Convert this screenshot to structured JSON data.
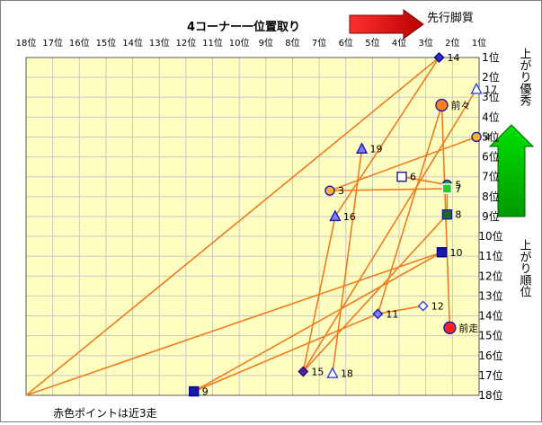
{
  "chart_data": {
    "type": "scatter",
    "title": "4コーナー一位置取り",
    "annotations": {
      "top_arrow_label": "先行脚質",
      "right_arrow_label": "上がり優秀",
      "y_axis_title": "上がり順位",
      "footnote": "赤色ポイントは近3走"
    },
    "x_axis": {
      "range": [
        18,
        1
      ],
      "ticks": [
        "18位",
        "17位",
        "16位",
        "15位",
        "14位",
        "13位",
        "12位",
        "11位",
        "10位",
        "9位",
        "8位",
        "7位",
        "6位",
        "5位",
        "4位",
        "3位",
        "2位",
        "1位"
      ]
    },
    "y_axis": {
      "range": [
        1,
        18
      ],
      "ticks": [
        "1位",
        "2位",
        "3位",
        "4位",
        "5位",
        "6位",
        "7位",
        "8位",
        "9位",
        "10位",
        "11位",
        "12位",
        "13位",
        "14位",
        "15位",
        "16位",
        "17位",
        "18位"
      ]
    },
    "grid": true,
    "colors": {
      "line": "#f07a20",
      "plot_bg": "#ffffc0",
      "grid": "#c8c8c8",
      "red_point": "#ff2020",
      "orange_point": "#ff7f20"
    },
    "points": [
      {
        "label": "14",
        "x": 2.5,
        "y": 1.0,
        "marker": "diamond",
        "fill": "#3030cc",
        "stroke": "#00008b"
      },
      {
        "label": "17",
        "x": 1.1,
        "y": 2.6,
        "marker": "triangle",
        "fill": "#ffffff",
        "stroke": "#3344dd"
      },
      {
        "label": "前々",
        "x": 2.4,
        "y": 3.4,
        "marker": "circle",
        "fill": "#ff7f20",
        "stroke": "#1a1aaa"
      },
      {
        "label": "4",
        "x": 1.1,
        "y": 5.0,
        "marker": "circle",
        "fill": "#ffb030",
        "stroke": "#1a1aaa"
      },
      {
        "label": "19",
        "x": 5.4,
        "y": 5.6,
        "marker": "triangle",
        "fill": "#8080ff",
        "stroke": "#1a1aaa"
      },
      {
        "label": "6",
        "x": 3.9,
        "y": 7.0,
        "marker": "square",
        "fill": "#ffffff",
        "stroke": "#1a1aaa"
      },
      {
        "label": "5",
        "x": 2.2,
        "y": 7.4,
        "marker": "circle",
        "fill": "#2e8b57",
        "stroke": "#1a1aaa"
      },
      {
        "label": "7",
        "x": 2.2,
        "y": 7.6,
        "marker": "square",
        "fill": "#22cc22",
        "stroke": "#ffffff"
      },
      {
        "label": "3",
        "x": 6.6,
        "y": 7.7,
        "marker": "circle",
        "fill": "#ffb030",
        "stroke": "#1a1aaa"
      },
      {
        "label": "16",
        "x": 6.4,
        "y": 9.0,
        "marker": "triangle",
        "fill": "#8080ff",
        "stroke": "#1a1aaa"
      },
      {
        "label": "8",
        "x": 2.2,
        "y": 8.9,
        "marker": "square",
        "fill": "#1e6b1e",
        "stroke": "#1a1aaa"
      },
      {
        "label": "10",
        "x": 2.4,
        "y": 10.8,
        "marker": "square",
        "fill": "#1a1aaa",
        "stroke": "#00008b"
      },
      {
        "label": "12",
        "x": 3.1,
        "y": 13.5,
        "marker": "diamond",
        "fill": "#ffffff",
        "stroke": "#3344dd"
      },
      {
        "label": "11",
        "x": 4.8,
        "y": 13.9,
        "marker": "diamond",
        "fill": "#8080ff",
        "stroke": "#1a1aaa"
      },
      {
        "label": "前走",
        "x": 2.1,
        "y": 14.6,
        "marker": "circle",
        "fill": "#ff2020",
        "stroke": "#1a1aaa"
      },
      {
        "label": "15",
        "x": 7.6,
        "y": 16.8,
        "marker": "diamond",
        "fill": "#5a1aaa",
        "stroke": "#2a0a6a"
      },
      {
        "label": "18",
        "x": 6.5,
        "y": 16.9,
        "marker": "triangle",
        "fill": "#ffffff",
        "stroke": "#3344dd"
      },
      {
        "label": "9",
        "x": 11.7,
        "y": 17.8,
        "marker": "square",
        "fill": "#1a1aaa",
        "stroke": "#00008b"
      }
    ],
    "line_segments": [
      {
        "x1": 18.0,
        "y1": 18.0,
        "x2": 2.5,
        "y2": 1.0
      },
      {
        "x1": 18.0,
        "y1": 18.0,
        "x2": 2.4,
        "y2": 10.8
      },
      {
        "x1": 2.4,
        "y1": 3.4,
        "x2": 2.1,
        "y2": 14.6
      },
      {
        "x1": 2.5,
        "y1": 1.0,
        "x2": 6.4,
        "y2": 9.0
      },
      {
        "x1": 1.1,
        "y1": 2.6,
        "x2": 7.6,
        "y2": 16.8
      },
      {
        "x1": 2.4,
        "y1": 3.4,
        "x2": 4.8,
        "y2": 13.9
      },
      {
        "x1": 1.1,
        "y1": 5.0,
        "x2": 6.6,
        "y2": 7.7
      },
      {
        "x1": 5.4,
        "y1": 5.6,
        "x2": 6.5,
        "y2": 16.9
      },
      {
        "x1": 3.9,
        "y1": 7.0,
        "x2": 2.2,
        "y2": 7.4
      },
      {
        "x1": 6.6,
        "y1": 7.7,
        "x2": 2.2,
        "y2": 7.6
      },
      {
        "x1": 2.2,
        "y1": 7.4,
        "x2": 2.2,
        "y2": 8.9
      },
      {
        "x1": 2.2,
        "y1": 8.9,
        "x2": 7.6,
        "y2": 16.8
      },
      {
        "x1": 2.4,
        "y1": 10.8,
        "x2": 11.7,
        "y2": 17.8
      },
      {
        "x1": 3.1,
        "y1": 13.5,
        "x2": 4.8,
        "y2": 13.9
      },
      {
        "x1": 4.8,
        "y1": 13.9,
        "x2": 11.7,
        "y2": 17.8
      },
      {
        "x1": 6.4,
        "y1": 9.0,
        "x2": 7.6,
        "y2": 16.8
      }
    ]
  }
}
